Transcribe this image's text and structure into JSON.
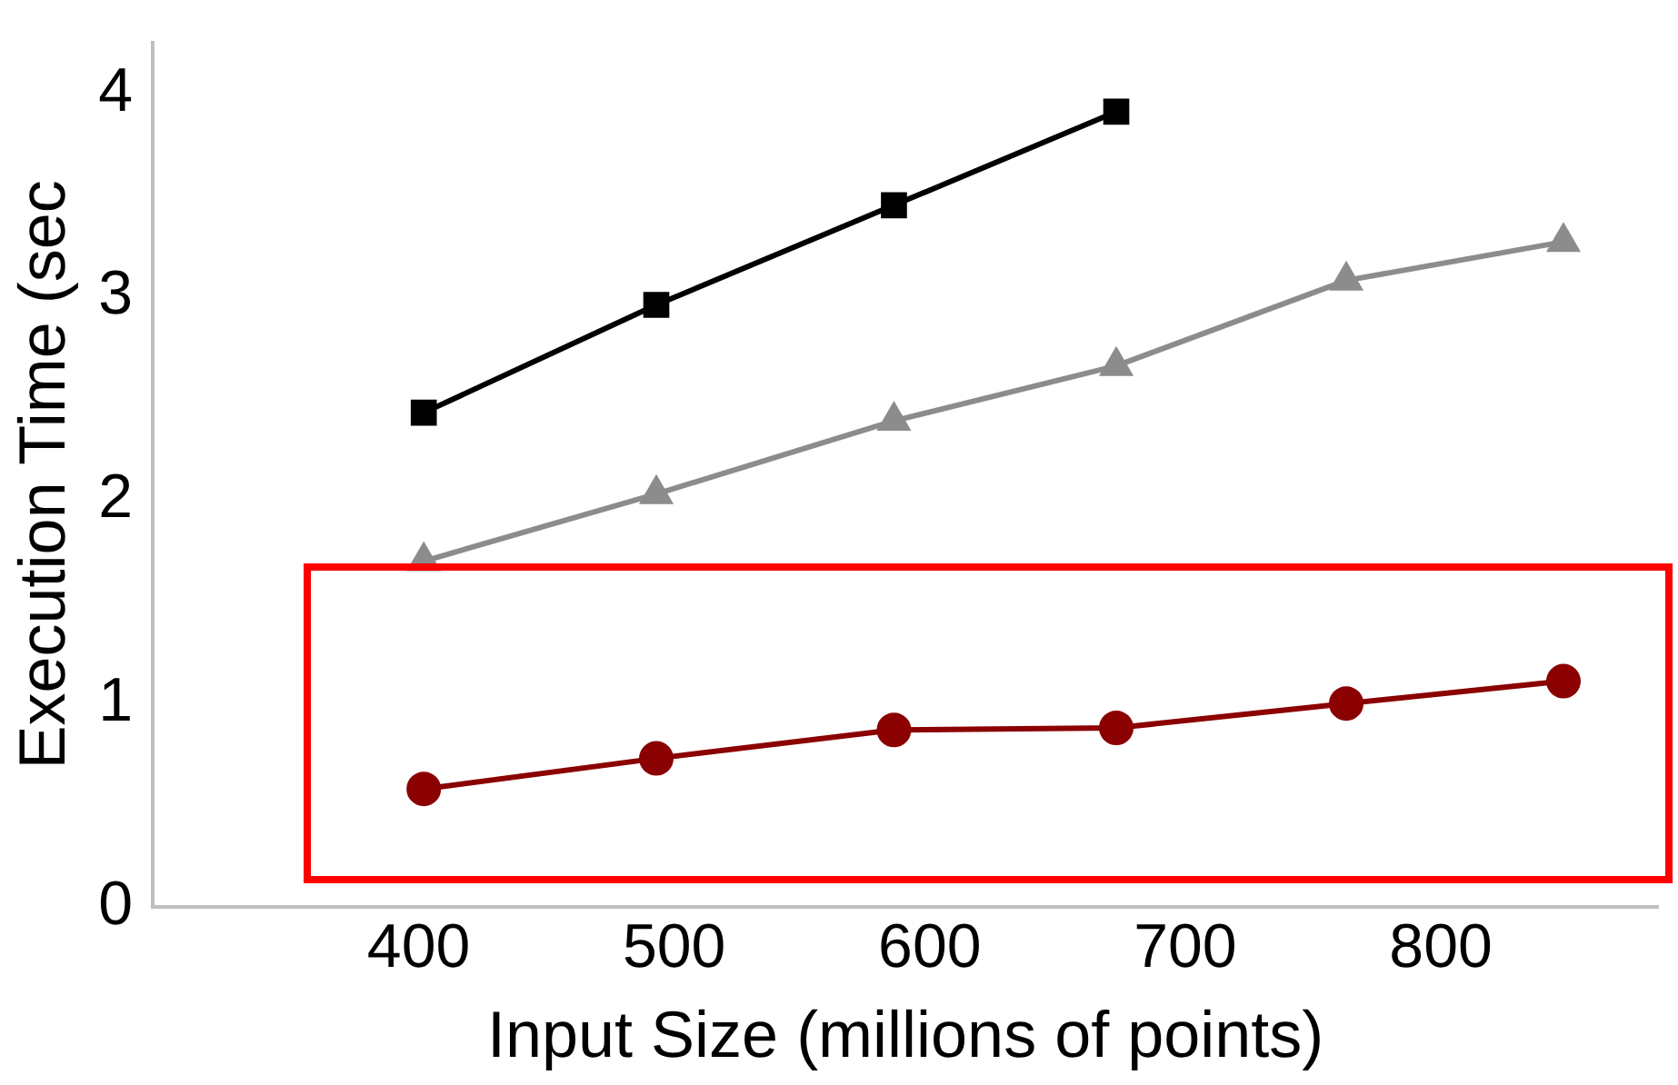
{
  "chart_data": {
    "type": "line",
    "xlabel": "Input Size (millions of points)",
    "ylabel": "Execution Time (sec",
    "x": [
      402,
      493,
      586,
      673,
      763,
      848
    ],
    "series": [
      {
        "color": "#000000",
        "marker": "square",
        "values": [
          2.43,
          2.96,
          3.45,
          3.91,
          null,
          null
        ]
      },
      {
        "color": "#8c8c8c",
        "marker": "triangle",
        "values": [
          1.7,
          2.03,
          2.39,
          2.66,
          3.08,
          3.27
        ]
      },
      {
        "color": "#8b0000",
        "marker": "circle",
        "values": [
          0.58,
          0.73,
          0.87,
          0.88,
          1.0,
          1.11
        ]
      }
    ],
    "xlim": [
      296,
      885
    ],
    "xticks": [
      400,
      500,
      600,
      700,
      800
    ],
    "ylim": [
      0,
      4.25
    ],
    "yticks": [
      0,
      1,
      2,
      3,
      4
    ],
    "grid": false,
    "legend": false,
    "line_style": "solid"
  }
}
